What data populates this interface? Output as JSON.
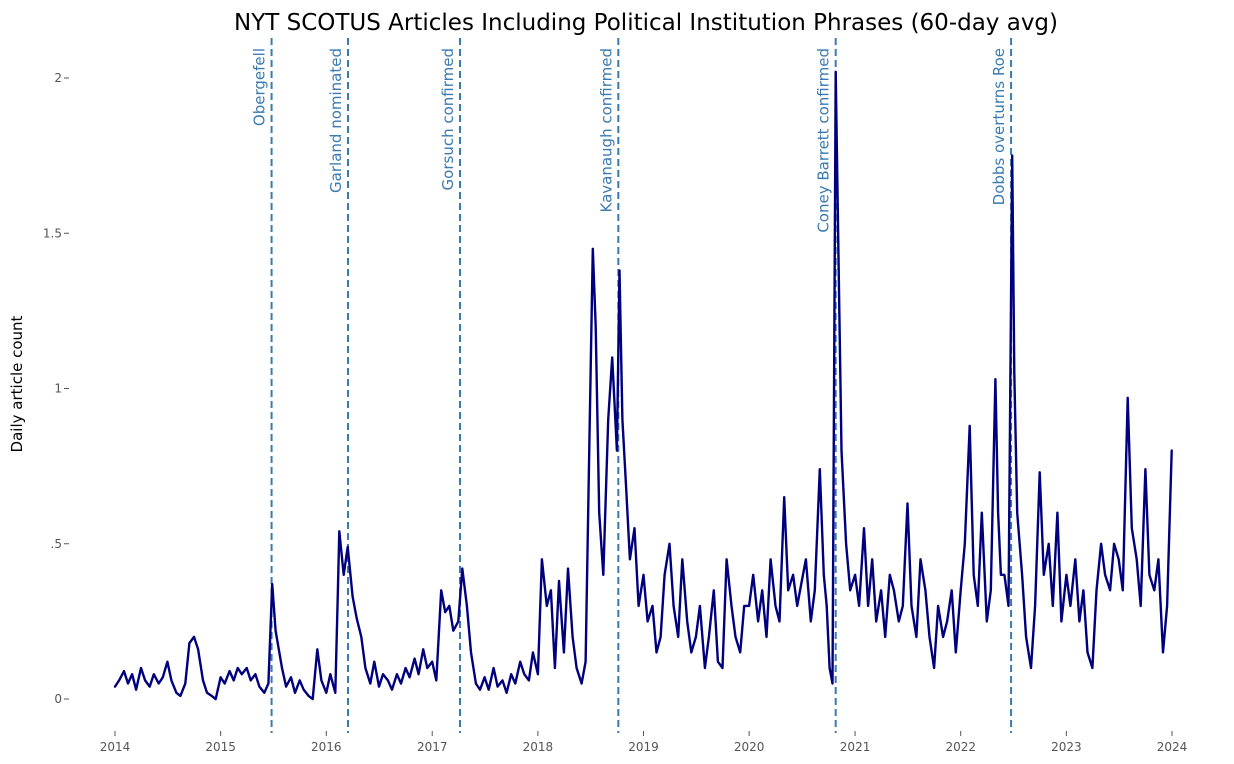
{
  "chart_data": {
    "type": "line",
    "title": "NYT SCOTUS Articles Including Political Institution Phrases (60-day avg)",
    "xlabel": "",
    "ylabel": "Daily article count",
    "xlim": [
      "2014-01-01",
      "2024-01-01"
    ],
    "ylim": [
      0,
      2
    ],
    "yticks": [
      {
        "value": 0,
        "label": "0"
      },
      {
        "value": 0.5,
        "label": ".5"
      },
      {
        "value": 1,
        "label": "1"
      },
      {
        "value": 1.5,
        "label": "1.5"
      },
      {
        "value": 2,
        "label": "2"
      }
    ],
    "xticks": [
      {
        "value": "2014-01-01",
        "label": "2014"
      },
      {
        "value": "2015-01-01",
        "label": "2015"
      },
      {
        "value": "2016-01-01",
        "label": "2016"
      },
      {
        "value": "2017-01-01",
        "label": "2017"
      },
      {
        "value": "2018-01-01",
        "label": "2018"
      },
      {
        "value": "2019-01-01",
        "label": "2019"
      },
      {
        "value": "2020-01-01",
        "label": "2020"
      },
      {
        "value": "2021-01-01",
        "label": "2021"
      },
      {
        "value": "2022-01-01",
        "label": "2022"
      },
      {
        "value": "2023-01-01",
        "label": "2023"
      },
      {
        "value": "2024-01-01",
        "label": "2024"
      }
    ],
    "grid": false,
    "series_color": "#00007f",
    "event_color": "#3a7ab0",
    "events": [
      {
        "date": "2015-06-26",
        "label": "Obergefell"
      },
      {
        "date": "2016-03-16",
        "label": "Garland nominated"
      },
      {
        "date": "2017-04-07",
        "label": "Gorsuch confirmed"
      },
      {
        "date": "2018-10-06",
        "label": "Kavanaugh confirmed"
      },
      {
        "date": "2020-10-26",
        "label": "Coney Barrett confirmed"
      },
      {
        "date": "2022-06-24",
        "label": "Dobbs overturns Roe"
      }
    ],
    "series": [
      {
        "x": [
          "2014-01-01",
          "2014-01-15",
          "2014-02-01",
          "2014-02-15",
          "2014-03-01",
          "2014-03-15",
          "2014-04-01",
          "2014-04-15",
          "2014-05-01",
          "2014-05-15",
          "2014-06-01",
          "2014-06-15",
          "2014-07-01",
          "2014-07-15",
          "2014-08-01",
          "2014-08-15",
          "2014-09-01",
          "2014-09-15",
          "2014-10-01",
          "2014-10-15",
          "2014-11-01",
          "2014-11-15",
          "2014-12-01",
          "2014-12-15",
          "2015-01-01",
          "2015-01-15",
          "2015-02-01",
          "2015-02-15",
          "2015-03-01",
          "2015-03-15",
          "2015-04-01",
          "2015-04-15",
          "2015-05-01",
          "2015-05-15",
          "2015-06-01",
          "2015-06-15",
          "2015-06-28",
          "2015-07-10",
          "2015-08-01",
          "2015-08-15",
          "2015-09-01",
          "2015-09-15",
          "2015-10-01",
          "2015-10-15",
          "2015-11-01",
          "2015-11-15",
          "2015-12-01",
          "2015-12-15",
          "2016-01-01",
          "2016-01-15",
          "2016-02-01",
          "2016-02-10",
          "2016-02-15",
          "2016-03-01",
          "2016-03-15",
          "2016-04-01",
          "2016-04-15",
          "2016-05-01",
          "2016-05-15",
          "2016-06-01",
          "2016-06-15",
          "2016-07-01",
          "2016-07-15",
          "2016-08-01",
          "2016-08-15",
          "2016-09-01",
          "2016-09-15",
          "2016-10-01",
          "2016-10-15",
          "2016-11-01",
          "2016-11-15",
          "2016-12-01",
          "2016-12-15",
          "2017-01-01",
          "2017-01-15",
          "2017-02-01",
          "2017-02-15",
          "2017-03-01",
          "2017-03-15",
          "2017-04-01",
          "2017-04-15",
          "2017-05-01",
          "2017-05-15",
          "2017-06-01",
          "2017-06-15",
          "2017-07-01",
          "2017-07-15",
          "2017-08-01",
          "2017-08-15",
          "2017-09-01",
          "2017-09-15",
          "2017-10-01",
          "2017-10-15",
          "2017-11-01",
          "2017-11-15",
          "2017-12-01",
          "2017-12-15",
          "2018-01-01",
          "2018-01-15",
          "2018-02-01",
          "2018-02-15",
          "2018-03-01",
          "2018-03-15",
          "2018-04-01",
          "2018-04-15",
          "2018-05-01",
          "2018-05-15",
          "2018-06-01",
          "2018-06-15",
          "2018-06-28",
          "2018-07-10",
          "2018-07-20",
          "2018-08-01",
          "2018-08-15",
          "2018-09-01",
          "2018-09-15",
          "2018-10-01",
          "2018-10-10",
          "2018-10-20",
          "2018-11-01",
          "2018-11-15",
          "2018-12-01",
          "2018-12-15",
          "2019-01-01",
          "2019-01-15",
          "2019-02-01",
          "2019-02-15",
          "2019-03-01",
          "2019-03-15",
          "2019-04-01",
          "2019-04-15",
          "2019-05-01",
          "2019-05-15",
          "2019-06-01",
          "2019-06-15",
          "2019-07-01",
          "2019-07-15",
          "2019-08-01",
          "2019-08-15",
          "2019-09-01",
          "2019-09-15",
          "2019-10-01",
          "2019-10-15",
          "2019-11-01",
          "2019-11-15",
          "2019-12-01",
          "2019-12-15",
          "2020-01-01",
          "2020-01-15",
          "2020-02-01",
          "2020-02-15",
          "2020-03-01",
          "2020-03-15",
          "2020-04-01",
          "2020-04-15",
          "2020-05-01",
          "2020-05-15",
          "2020-06-01",
          "2020-06-15",
          "2020-07-01",
          "2020-07-15",
          "2020-08-01",
          "2020-08-15",
          "2020-09-01",
          "2020-09-15",
          "2020-09-25",
          "2020-10-05",
          "2020-10-15",
          "2020-10-26",
          "2020-11-05",
          "2020-11-15",
          "2020-12-01",
          "2020-12-15",
          "2021-01-01",
          "2021-01-15",
          "2021-02-01",
          "2021-02-15",
          "2021-03-01",
          "2021-03-15",
          "2021-04-01",
          "2021-04-15",
          "2021-05-01",
          "2021-05-15",
          "2021-06-01",
          "2021-06-15",
          "2021-07-01",
          "2021-07-15",
          "2021-08-01",
          "2021-08-15",
          "2021-09-01",
          "2021-09-15",
          "2021-10-01",
          "2021-10-15",
          "2021-11-01",
          "2021-11-15",
          "2021-12-01",
          "2021-12-15",
          "2022-01-01",
          "2022-01-15",
          "2022-02-01",
          "2022-02-15",
          "2022-03-01",
          "2022-03-15",
          "2022-04-01",
          "2022-04-15",
          "2022-05-01",
          "2022-05-10",
          "2022-05-20",
          "2022-06-01",
          "2022-06-15",
          "2022-06-28",
          "2022-07-05",
          "2022-07-15",
          "2022-08-01",
          "2022-08-15",
          "2022-09-01",
          "2022-09-15",
          "2022-10-01",
          "2022-10-15",
          "2022-11-01",
          "2022-11-15",
          "2022-12-01",
          "2022-12-15",
          "2023-01-01",
          "2023-01-15",
          "2023-02-01",
          "2023-02-15",
          "2023-03-01",
          "2023-03-15",
          "2023-04-01",
          "2023-04-15",
          "2023-05-01",
          "2023-05-15",
          "2023-06-01",
          "2023-06-15",
          "2023-07-01",
          "2023-07-15",
          "2023-08-01",
          "2023-08-15",
          "2023-09-01",
          "2023-09-15",
          "2023-10-01",
          "2023-10-15",
          "2023-11-01",
          "2023-11-15",
          "2023-12-01",
          "2023-12-15",
          "2023-12-31"
        ],
        "y": [
          0.04,
          0.06,
          0.09,
          0.05,
          0.08,
          0.03,
          0.1,
          0.06,
          0.04,
          0.08,
          0.05,
          0.07,
          0.12,
          0.06,
          0.02,
          0.01,
          0.05,
          0.18,
          0.2,
          0.16,
          0.06,
          0.02,
          0.01,
          0.0,
          0.07,
          0.05,
          0.09,
          0.06,
          0.1,
          0.08,
          0.1,
          0.06,
          0.08,
          0.04,
          0.02,
          0.05,
          0.37,
          0.22,
          0.1,
          0.04,
          0.07,
          0.02,
          0.06,
          0.03,
          0.01,
          0.0,
          0.16,
          0.06,
          0.02,
          0.08,
          0.02,
          0.35,
          0.54,
          0.4,
          0.49,
          0.33,
          0.26,
          0.2,
          0.1,
          0.05,
          0.12,
          0.04,
          0.08,
          0.06,
          0.03,
          0.08,
          0.05,
          0.1,
          0.07,
          0.13,
          0.08,
          0.16,
          0.1,
          0.12,
          0.06,
          0.35,
          0.28,
          0.3,
          0.22,
          0.25,
          0.42,
          0.3,
          0.15,
          0.05,
          0.03,
          0.07,
          0.03,
          0.1,
          0.04,
          0.06,
          0.02,
          0.08,
          0.05,
          0.12,
          0.08,
          0.06,
          0.15,
          0.08,
          0.45,
          0.3,
          0.35,
          0.1,
          0.38,
          0.15,
          0.42,
          0.2,
          0.1,
          0.05,
          0.12,
          0.83,
          1.45,
          1.2,
          0.6,
          0.4,
          0.9,
          1.1,
          0.8,
          1.38,
          0.9,
          0.7,
          0.45,
          0.55,
          0.3,
          0.4,
          0.25,
          0.3,
          0.15,
          0.2,
          0.4,
          0.5,
          0.3,
          0.2,
          0.45,
          0.25,
          0.15,
          0.2,
          0.3,
          0.1,
          0.2,
          0.35,
          0.12,
          0.1,
          0.45,
          0.3,
          0.2,
          0.15,
          0.3,
          0.3,
          0.4,
          0.25,
          0.35,
          0.2,
          0.45,
          0.3,
          0.25,
          0.65,
          0.35,
          0.4,
          0.3,
          0.38,
          0.45,
          0.25,
          0.35,
          0.74,
          0.4,
          0.3,
          0.1,
          0.05,
          2.02,
          1.4,
          0.8,
          0.5,
          0.35,
          0.4,
          0.3,
          0.55,
          0.3,
          0.45,
          0.25,
          0.35,
          0.2,
          0.4,
          0.35,
          0.25,
          0.3,
          0.63,
          0.3,
          0.2,
          0.45,
          0.35,
          0.2,
          0.1,
          0.3,
          0.2,
          0.25,
          0.35,
          0.15,
          0.35,
          0.5,
          0.88,
          0.4,
          0.3,
          0.6,
          0.25,
          0.35,
          1.03,
          0.6,
          0.4,
          0.4,
          0.3,
          1.75,
          1.05,
          0.6,
          0.4,
          0.2,
          0.1,
          0.3,
          0.73,
          0.4,
          0.5,
          0.3,
          0.6,
          0.25,
          0.4,
          0.3,
          0.45,
          0.25,
          0.35,
          0.15,
          0.1,
          0.35,
          0.5,
          0.4,
          0.35,
          0.5,
          0.45,
          0.35,
          0.97,
          0.55,
          0.45,
          0.3,
          0.74,
          0.4,
          0.35,
          0.45,
          0.15,
          0.3,
          0.8
        ]
      }
    ]
  }
}
